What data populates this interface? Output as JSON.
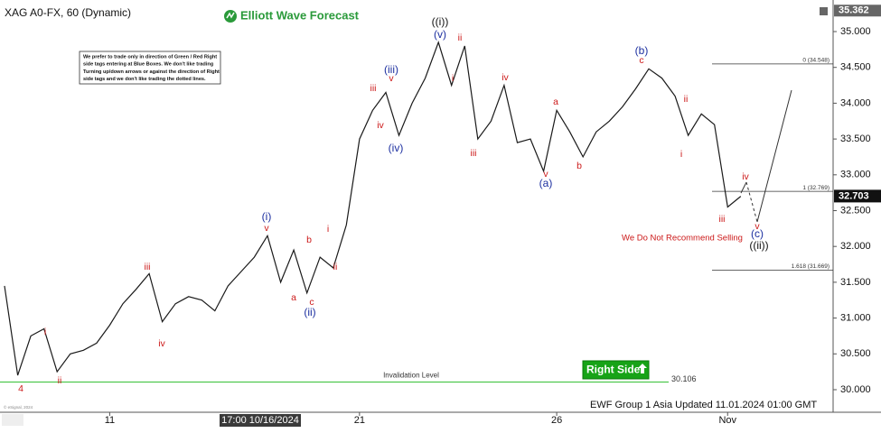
{
  "header": {
    "title": "XAG A0-FX, 60 (Dynamic)",
    "logo": "Elliott Wave Forecast"
  },
  "note": [
    "We prefer to trade only in direction of Green / Red Right",
    "side tags entering at Blue Boxes. We don't like trading",
    "Turning up/down arrows or against the direction of Right",
    "side tags and we don't like trading the dotted lines."
  ],
  "chart_data": {
    "type": "line",
    "color": "#1a1a1a",
    "categories": [
      null,
      null,
      null,
      null,
      null,
      null,
      null,
      null,
      "11",
      null,
      null,
      null,
      null,
      null,
      null,
      null,
      null,
      null,
      null,
      null,
      null,
      null,
      null,
      null,
      null,
      null,
      null,
      "21",
      null,
      null,
      null,
      null,
      null,
      null,
      null,
      null,
      null,
      null,
      null,
      null,
      null,
      null,
      "26",
      null,
      null,
      null,
      null,
      null,
      null,
      null,
      null,
      null,
      null,
      null,
      null,
      "Nov",
      null
    ],
    "values": [
      31.45,
      30.2,
      30.75,
      30.85,
      30.25,
      30.5,
      30.55,
      30.65,
      30.9,
      31.2,
      31.4,
      31.62,
      30.95,
      31.2,
      31.3,
      31.25,
      31.1,
      31.45,
      31.65,
      31.85,
      32.15,
      31.5,
      31.95,
      31.35,
      31.85,
      31.7,
      32.3,
      33.5,
      33.9,
      34.15,
      33.55,
      34.0,
      34.35,
      34.85,
      34.25,
      34.8,
      33.5,
      33.75,
      34.25,
      33.45,
      33.5,
      33.05,
      33.9,
      33.6,
      33.25,
      33.6,
      33.75,
      33.95,
      34.2,
      34.48,
      34.35,
      34.1,
      33.55,
      33.85,
      33.7,
      32.55,
      32.7
    ],
    "ylim": [
      29.71,
      35.378
    ],
    "yticks": [
      {
        "value": 30,
        "label": "30.000"
      },
      {
        "value": 30.5,
        "label": "30.500"
      },
      {
        "value": 31,
        "label": "31.000"
      },
      {
        "value": 31.5,
        "label": "31.500"
      },
      {
        "value": 32,
        "label": "32.000"
      },
      {
        "value": 32.5,
        "label": "32.500"
      },
      {
        "value": 33,
        "label": "33.000"
      },
      {
        "value": 33.5,
        "label": "33.500"
      },
      {
        "value": 34,
        "label": "34.000"
      },
      {
        "value": 34.5,
        "label": "34.500"
      },
      {
        "value": 35,
        "label": "35.000"
      }
    ],
    "high_tag": 35.362,
    "last_tag": 32.703,
    "fib_levels": [
      {
        "value": 34.548,
        "label": "0 (34.548)"
      },
      {
        "value": 32.769,
        "label": "1 (32.769)"
      },
      {
        "value": 31.669,
        "label": "1.618 (31.669)"
      }
    ],
    "invalidation": {
      "text": "Invalidation Level",
      "value": 30.106,
      "color": "#35c035"
    },
    "wave_labels": [
      {
        "text": "4",
        "color": "#cc1a1a"
      },
      {
        "text": "i",
        "color": "#cc1a1a"
      },
      {
        "text": "ii",
        "color": "#cc1a1a"
      },
      {
        "text": "iii",
        "color": "#cc1a1a"
      },
      {
        "text": "iv",
        "color": "#cc1a1a"
      },
      {
        "text": "(i)",
        "color": "#1c2fa0"
      },
      {
        "text": "v",
        "color": "#cc1a1a"
      },
      {
        "text": "a",
        "color": "#cc1a1a"
      },
      {
        "text": "b",
        "color": "#cc1a1a"
      },
      {
        "text": "c",
        "color": "#cc1a1a"
      },
      {
        "text": "(ii)",
        "color": "#1c2fa0"
      },
      {
        "text": "i",
        "color": "#cc1a1a"
      },
      {
        "text": "ii",
        "color": "#cc1a1a"
      },
      {
        "text": "iii",
        "color": "#cc1a1a"
      },
      {
        "text": "iv",
        "color": "#cc1a1a"
      },
      {
        "text": "(iii)",
        "color": "#1c2fa0"
      },
      {
        "text": "v",
        "color": "#cc1a1a"
      },
      {
        "text": "(iv)",
        "color": "#1c2fa0"
      },
      {
        "text": "((i))",
        "color": "#111111"
      },
      {
        "text": "(v)",
        "color": "#1c2fa0"
      },
      {
        "text": "ii",
        "color": "#cc1a1a"
      },
      {
        "text": "i",
        "color": "#cc1a1a"
      },
      {
        "text": "iii",
        "color": "#cc1a1a"
      },
      {
        "text": "iv",
        "color": "#cc1a1a"
      },
      {
        "text": "v",
        "color": "#cc1a1a"
      },
      {
        "text": "(a)",
        "color": "#1c2fa0"
      },
      {
        "text": "a",
        "color": "#cc1a1a"
      },
      {
        "text": "b",
        "color": "#cc1a1a"
      },
      {
        "text": "(b)",
        "color": "#1c2fa0"
      },
      {
        "text": "c",
        "color": "#cc1a1a"
      },
      {
        "text": "ii",
        "color": "#cc1a1a"
      },
      {
        "text": "i",
        "color": "#cc1a1a"
      },
      {
        "text": "iii",
        "color": "#cc1a1a"
      },
      {
        "text": "iv",
        "color": "#cc1a1a"
      },
      {
        "text": "v",
        "color": "#cc1a1a"
      },
      {
        "text": "(c)",
        "color": "#1c2fa0"
      },
      {
        "text": "((ii))",
        "color": "#111111"
      }
    ],
    "recommendation": "We Do Not Recommend Selling",
    "right_side": "Right Side",
    "crosshair_label": "17:00 10/16/2024"
  },
  "footer": "EWF Group 1 Asia Updated 11.01.2024 01:00 GMT",
  "copyright": "© eSignal, 2024"
}
